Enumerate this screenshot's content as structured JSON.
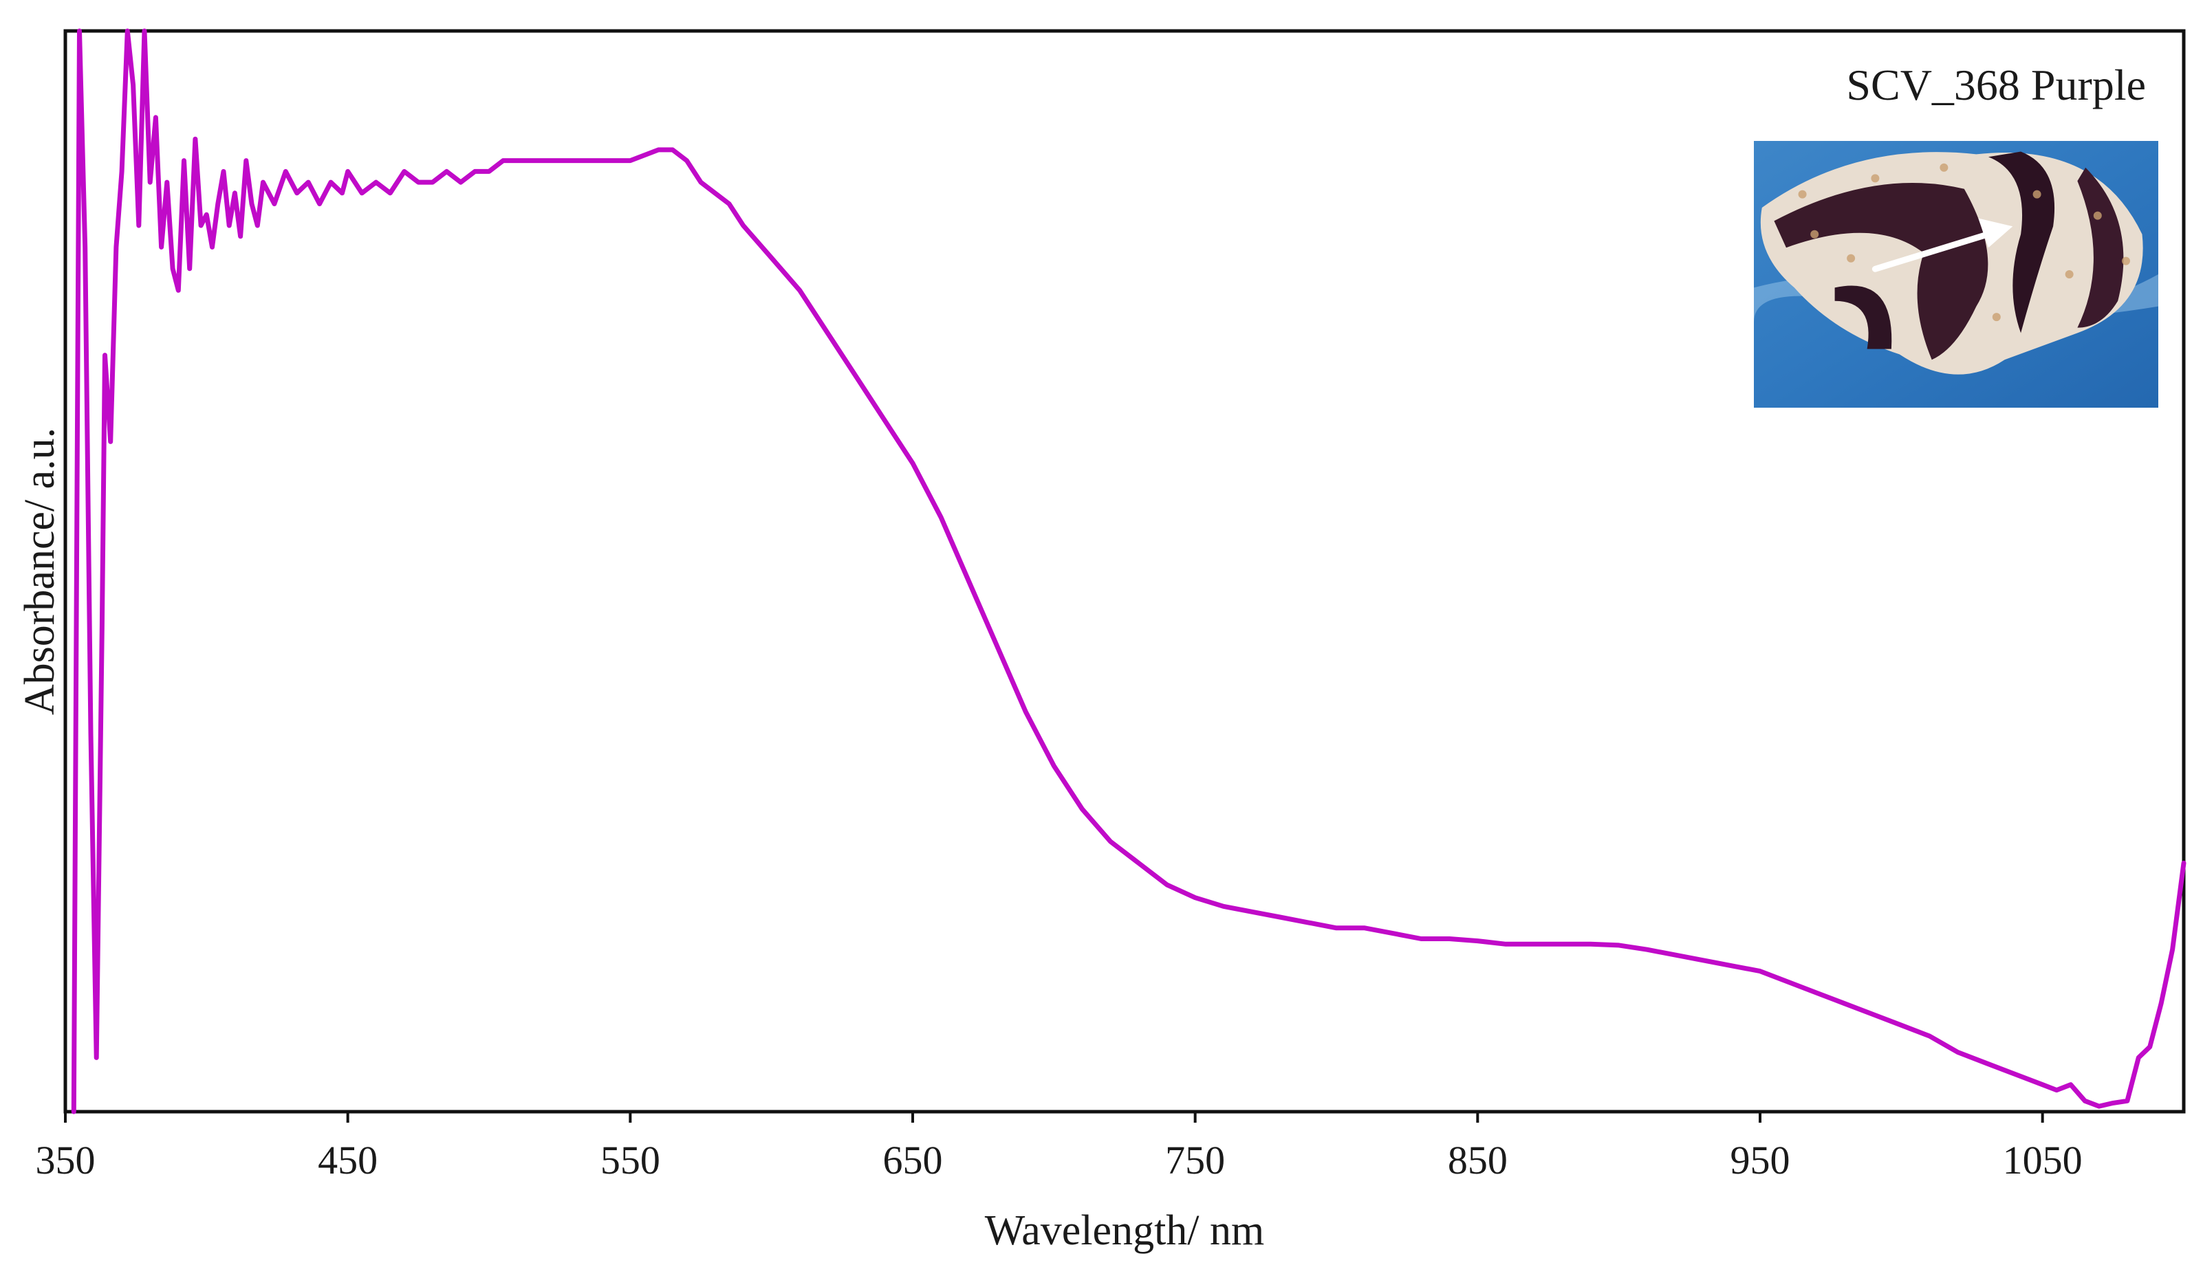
{
  "chart_data": {
    "type": "line",
    "title": "",
    "xlabel": "Wavelength/ nm",
    "ylabel": "Absorbance/ a.u.",
    "xlim": [
      350,
      1100
    ],
    "ylim": [
      0,
      1
    ],
    "x_ticks": [
      350,
      450,
      550,
      650,
      750,
      850,
      950,
      1050
    ],
    "x_tick_labels": [
      "350",
      "450",
      "550",
      "650",
      "750",
      "850",
      "950",
      "1050"
    ],
    "y_ticks_shown": false,
    "grid": false,
    "legend": "none",
    "annotations": [
      {
        "text": "SCV_368 Purple",
        "position": "top-right"
      }
    ],
    "inset_image": {
      "description": "photograph",
      "position": "top-right",
      "has_arrow": true
    },
    "series": [
      {
        "color": "#c00ac8",
        "points": [
          [
            353,
            0.0
          ],
          [
            355,
            1.0
          ],
          [
            357,
            0.8
          ],
          [
            359,
            0.35
          ],
          [
            361,
            0.05
          ],
          [
            363,
            0.45
          ],
          [
            364,
            0.7
          ],
          [
            366,
            0.62
          ],
          [
            368,
            0.8
          ],
          [
            370,
            0.87
          ],
          [
            372,
            1.0
          ],
          [
            374,
            0.95
          ],
          [
            376,
            0.82
          ],
          [
            378,
            1.0
          ],
          [
            380,
            0.86
          ],
          [
            382,
            0.92
          ],
          [
            384,
            0.8
          ],
          [
            386,
            0.86
          ],
          [
            388,
            0.78
          ],
          [
            390,
            0.76
          ],
          [
            392,
            0.88
          ],
          [
            394,
            0.78
          ],
          [
            396,
            0.9
          ],
          [
            398,
            0.82
          ],
          [
            400,
            0.83
          ],
          [
            402,
            0.8
          ],
          [
            404,
            0.84
          ],
          [
            406,
            0.87
          ],
          [
            408,
            0.82
          ],
          [
            410,
            0.85
          ],
          [
            412,
            0.81
          ],
          [
            414,
            0.88
          ],
          [
            416,
            0.84
          ],
          [
            418,
            0.82
          ],
          [
            420,
            0.86
          ],
          [
            424,
            0.84
          ],
          [
            428,
            0.87
          ],
          [
            432,
            0.85
          ],
          [
            436,
            0.86
          ],
          [
            440,
            0.84
          ],
          [
            444,
            0.86
          ],
          [
            448,
            0.85
          ],
          [
            450,
            0.87
          ],
          [
            455,
            0.85
          ],
          [
            460,
            0.86
          ],
          [
            465,
            0.85
          ],
          [
            470,
            0.87
          ],
          [
            475,
            0.86
          ],
          [
            480,
            0.86
          ],
          [
            485,
            0.87
          ],
          [
            490,
            0.86
          ],
          [
            495,
            0.87
          ],
          [
            500,
            0.87
          ],
          [
            505,
            0.88
          ],
          [
            510,
            0.88
          ],
          [
            515,
            0.88
          ],
          [
            520,
            0.88
          ],
          [
            530,
            0.88
          ],
          [
            540,
            0.88
          ],
          [
            550,
            0.88
          ],
          [
            560,
            0.89
          ],
          [
            565,
            0.89
          ],
          [
            570,
            0.88
          ],
          [
            575,
            0.86
          ],
          [
            580,
            0.85
          ],
          [
            585,
            0.84
          ],
          [
            590,
            0.82
          ],
          [
            600,
            0.79
          ],
          [
            610,
            0.76
          ],
          [
            620,
            0.72
          ],
          [
            630,
            0.68
          ],
          [
            640,
            0.64
          ],
          [
            650,
            0.6
          ],
          [
            660,
            0.55
          ],
          [
            670,
            0.49
          ],
          [
            680,
            0.43
          ],
          [
            690,
            0.37
          ],
          [
            700,
            0.32
          ],
          [
            710,
            0.28
          ],
          [
            720,
            0.25
          ],
          [
            730,
            0.23
          ],
          [
            740,
            0.21
          ],
          [
            750,
            0.198
          ],
          [
            760,
            0.19
          ],
          [
            770,
            0.185
          ],
          [
            780,
            0.18
          ],
          [
            790,
            0.175
          ],
          [
            800,
            0.17
          ],
          [
            810,
            0.17
          ],
          [
            820,
            0.165
          ],
          [
            830,
            0.16
          ],
          [
            840,
            0.16
          ],
          [
            850,
            0.158
          ],
          [
            860,
            0.155
          ],
          [
            870,
            0.155
          ],
          [
            880,
            0.155
          ],
          [
            890,
            0.155
          ],
          [
            900,
            0.154
          ],
          [
            910,
            0.15
          ],
          [
            920,
            0.145
          ],
          [
            930,
            0.14
          ],
          [
            940,
            0.135
          ],
          [
            950,
            0.13
          ],
          [
            960,
            0.12
          ],
          [
            970,
            0.11
          ],
          [
            980,
            0.1
          ],
          [
            990,
            0.09
          ],
          [
            1000,
            0.08
          ],
          [
            1010,
            0.07
          ],
          [
            1020,
            0.055
          ],
          [
            1030,
            0.045
          ],
          [
            1040,
            0.035
          ],
          [
            1050,
            0.025
          ],
          [
            1055,
            0.02
          ],
          [
            1060,
            0.025
          ],
          [
            1065,
            0.01
          ],
          [
            1070,
            0.005
          ],
          [
            1075,
            0.008
          ],
          [
            1080,
            0.01
          ],
          [
            1084,
            0.05
          ],
          [
            1088,
            0.06
          ],
          [
            1092,
            0.1
          ],
          [
            1096,
            0.15
          ],
          [
            1100,
            0.23
          ]
        ]
      }
    ]
  }
}
